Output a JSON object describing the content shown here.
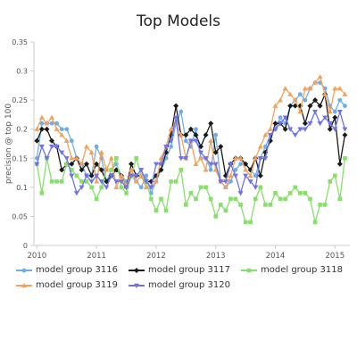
{
  "chart_data": {
    "type": "line",
    "title": "Top Models",
    "xlabel": "",
    "ylabel": "precision @ top 100",
    "xlim": [
      2009.95,
      2015.25
    ],
    "ylim": [
      0,
      0.35
    ],
    "yticks": [
      0,
      0.05,
      0.1,
      0.15,
      0.2,
      0.25,
      0.3,
      0.35
    ],
    "ytick_labels": [
      "0",
      "0.05",
      "0.1",
      "0.15",
      "0.2",
      "0.25",
      "0.3",
      "0.35"
    ],
    "xticks": [
      2010,
      2011,
      2012,
      2013,
      2014,
      2015
    ],
    "xtick_labels": [
      "2010",
      "2011",
      "2012",
      "2013",
      "2014",
      "2015"
    ],
    "grid": false,
    "legend_position": "bottom",
    "x": [
      2010.0,
      2010.083,
      2010.167,
      2010.25,
      2010.333,
      2010.417,
      2010.5,
      2010.583,
      2010.667,
      2010.75,
      2010.833,
      2010.917,
      2011.0,
      2011.083,
      2011.167,
      2011.25,
      2011.333,
      2011.417,
      2011.5,
      2011.583,
      2011.667,
      2011.75,
      2011.833,
      2011.917,
      2012.0,
      2012.083,
      2012.167,
      2012.25,
      2012.333,
      2012.417,
      2012.5,
      2012.583,
      2012.667,
      2012.75,
      2012.833,
      2012.917,
      2013.0,
      2013.083,
      2013.167,
      2013.25,
      2013.333,
      2013.417,
      2013.5,
      2013.583,
      2013.667,
      2013.75,
      2013.833,
      2013.917,
      2014.0,
      2014.083,
      2014.167,
      2014.25,
      2014.333,
      2014.417,
      2014.5,
      2014.583,
      2014.667,
      2014.75,
      2014.833,
      2014.917,
      2015.0,
      2015.083,
      2015.167
    ],
    "series": [
      {
        "name": "model group 3116",
        "color": "#6eaee8",
        "marker": "circle",
        "values": [
          0.15,
          0.21,
          0.21,
          0.21,
          0.21,
          0.2,
          0.2,
          0.18,
          0.15,
          0.14,
          0.12,
          0.12,
          0.17,
          0.15,
          0.11,
          0.13,
          0.14,
          0.12,
          0.11,
          0.12,
          0.11,
          0.1,
          0.12,
          0.09,
          0.11,
          0.13,
          0.15,
          0.17,
          0.21,
          0.23,
          0.18,
          0.17,
          0.2,
          0.15,
          0.15,
          0.13,
          0.19,
          0.11,
          0.1,
          0.11,
          0.13,
          0.14,
          0.14,
          0.13,
          0.12,
          0.15,
          0.17,
          0.19,
          0.2,
          0.22,
          0.21,
          0.24,
          0.25,
          0.26,
          0.25,
          0.27,
          0.28,
          0.28,
          0.27,
          0.24,
          0.23,
          0.25,
          0.24
        ]
      },
      {
        "name": "model group 3117",
        "color": "#1a1a1a",
        "marker": "diamond",
        "values": [
          0.18,
          0.2,
          0.2,
          0.18,
          0.17,
          0.13,
          0.14,
          0.14,
          0.15,
          0.13,
          0.14,
          0.12,
          0.14,
          0.13,
          0.11,
          0.12,
          0.13,
          0.12,
          0.1,
          0.14,
          0.12,
          0.12,
          0.11,
          0.11,
          0.12,
          0.13,
          0.16,
          0.19,
          0.24,
          0.19,
          0.19,
          0.2,
          0.19,
          0.17,
          0.19,
          0.21,
          0.16,
          0.17,
          0.12,
          0.14,
          0.15,
          0.15,
          0.14,
          0.13,
          0.15,
          0.12,
          0.16,
          0.18,
          0.21,
          0.21,
          0.2,
          0.24,
          0.24,
          0.24,
          0.21,
          0.24,
          0.25,
          0.24,
          0.26,
          0.2,
          0.22,
          0.14,
          0.19
        ]
      },
      {
        "name": "model group 3118",
        "color": "#86e06a",
        "marker": "square",
        "values": [
          0.14,
          0.09,
          0.15,
          0.11,
          0.11,
          0.11,
          0.14,
          0.13,
          0.12,
          0.11,
          0.11,
          0.1,
          0.08,
          0.1,
          0.13,
          0.13,
          0.15,
          0.1,
          0.09,
          0.12,
          0.15,
          0.12,
          0.11,
          0.08,
          0.06,
          0.08,
          0.06,
          0.11,
          0.11,
          0.13,
          0.07,
          0.09,
          0.08,
          0.1,
          0.1,
          0.08,
          0.05,
          0.07,
          0.06,
          0.08,
          0.08,
          0.07,
          0.04,
          0.04,
          0.08,
          0.1,
          0.07,
          0.07,
          0.09,
          0.08,
          0.08,
          0.09,
          0.1,
          0.09,
          0.09,
          0.08,
          0.04,
          0.07,
          0.07,
          0.11,
          0.12,
          0.08,
          0.15
        ]
      },
      {
        "name": "model group 3119",
        "color": "#f4a259",
        "marker": "triangle-up",
        "values": [
          0.2,
          0.22,
          0.21,
          0.22,
          0.2,
          0.19,
          0.18,
          0.15,
          0.15,
          0.14,
          0.17,
          0.16,
          0.11,
          0.16,
          0.13,
          0.15,
          0.1,
          0.12,
          0.1,
          0.13,
          0.11,
          0.12,
          0.1,
          0.1,
          0.11,
          0.15,
          0.17,
          0.2,
          0.21,
          0.19,
          0.15,
          0.18,
          0.14,
          0.15,
          0.13,
          0.18,
          0.13,
          0.11,
          0.1,
          0.12,
          0.15,
          0.15,
          0.13,
          0.12,
          0.15,
          0.17,
          0.19,
          0.2,
          0.24,
          0.25,
          0.27,
          0.26,
          0.25,
          0.23,
          0.27,
          0.27,
          0.28,
          0.29,
          0.26,
          0.23,
          0.27,
          0.27,
          0.26
        ]
      },
      {
        "name": "model group 3120",
        "color": "#6f72e8",
        "marker": "triangle-down",
        "values": [
          0.14,
          0.17,
          0.15,
          0.17,
          0.17,
          0.16,
          0.15,
          0.12,
          0.09,
          0.1,
          0.12,
          0.11,
          0.12,
          0.11,
          0.1,
          0.12,
          0.11,
          0.11,
          0.1,
          0.12,
          0.12,
          0.13,
          0.11,
          0.1,
          0.14,
          0.14,
          0.17,
          0.18,
          0.22,
          0.15,
          0.15,
          0.18,
          0.18,
          0.16,
          0.15,
          0.14,
          0.14,
          0.11,
          0.11,
          0.14,
          0.12,
          0.09,
          0.12,
          0.11,
          0.1,
          0.15,
          0.15,
          0.19,
          0.2,
          0.21,
          0.22,
          0.2,
          0.19,
          0.2,
          0.2,
          0.21,
          0.23,
          0.21,
          0.22,
          0.21,
          0.2,
          0.23,
          0.2
        ]
      }
    ]
  }
}
